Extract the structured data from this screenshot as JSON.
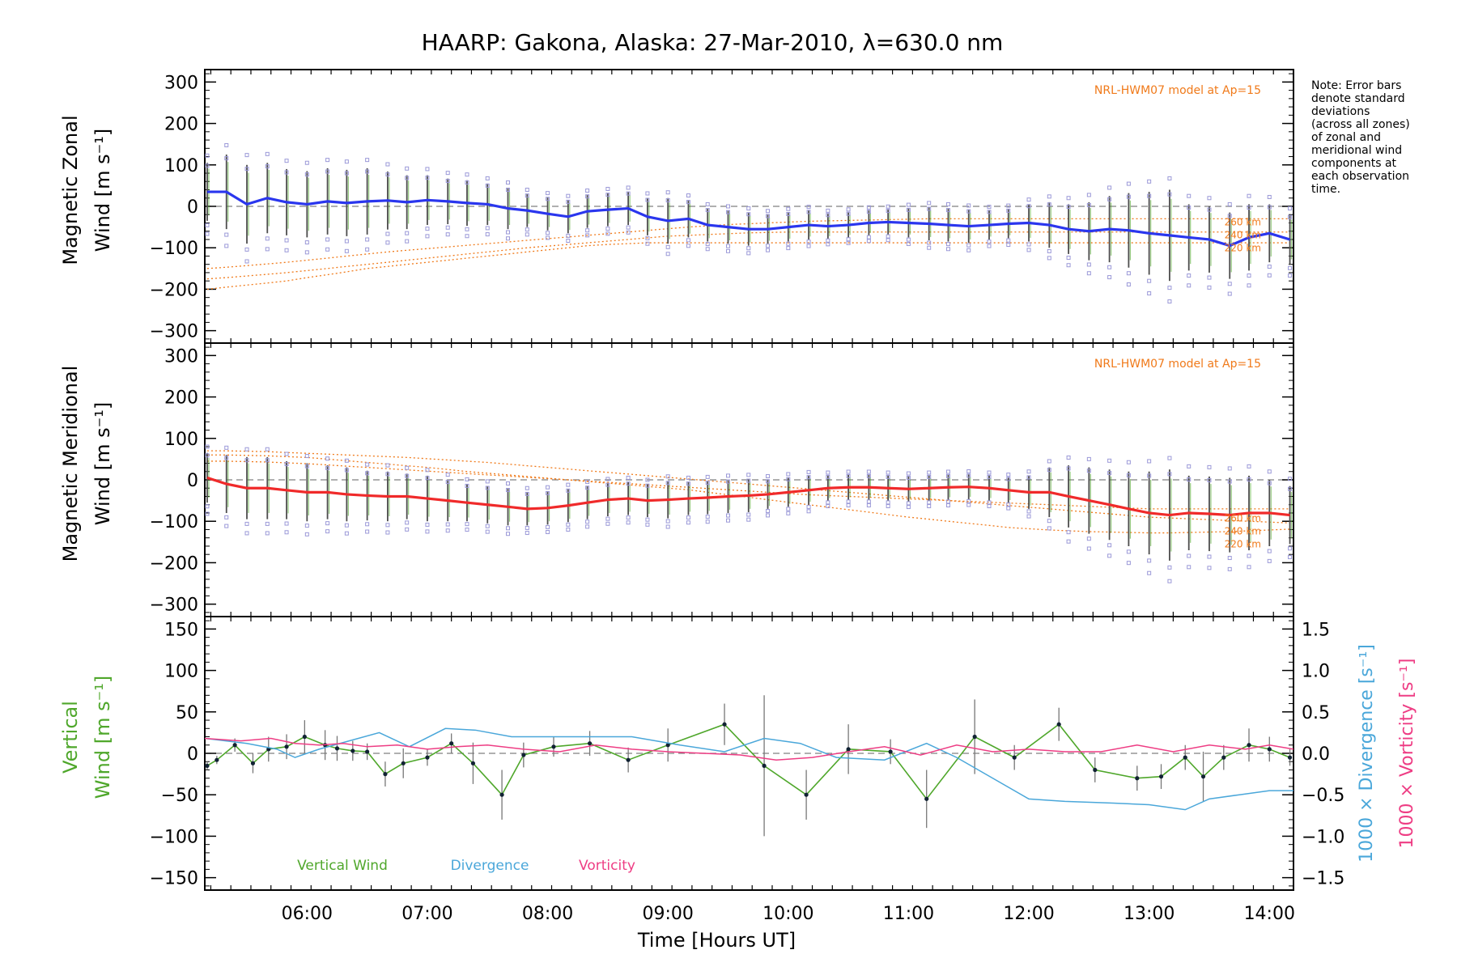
{
  "title": "HAARP: Gakona,  Alaska: 27-Mar-2010, λ=630.0 nm",
  "note_lines": [
    "Note: Error bars",
    "denote standard",
    "deviations",
    "(across all zones)",
    "of zonal and",
    "meridional wind",
    "components at",
    "each observation",
    "time."
  ],
  "colors": {
    "zonal": "#2a36ee",
    "meridional": "#f02a2a",
    "vertical": "#4fa72b",
    "divergence": "#4aa7da",
    "vorticity": "#ee3d84",
    "model": "#f07a1a",
    "error_bar": "#4d4d4d",
    "scatter": "#9b99d8",
    "zero_line": "#808080"
  },
  "chart_data": [
    {
      "id": "zonal",
      "type": "line",
      "ylabel_lines": [
        "Magnetic Zonal",
        "Wind [m s⁻¹]"
      ],
      "ylim": [
        -330,
        330
      ],
      "yticks": [
        -300,
        -200,
        -100,
        0,
        100,
        200,
        300
      ],
      "xlim": [
        5.15,
        14.2
      ],
      "model_label": "NRL-HWM07 model at Ap=15",
      "model_curve_labels": [
        "260 km",
        "240 km",
        "220 km"
      ],
      "x": [
        5.17,
        5.33,
        5.5,
        5.67,
        5.83,
        6.0,
        6.17,
        6.33,
        6.5,
        6.67,
        6.83,
        7.0,
        7.17,
        7.33,
        7.5,
        7.67,
        7.83,
        8.0,
        8.17,
        8.33,
        8.5,
        8.67,
        8.83,
        9.0,
        9.17,
        9.33,
        9.5,
        9.67,
        9.83,
        10.0,
        10.17,
        10.33,
        10.5,
        10.67,
        10.83,
        11.0,
        11.17,
        11.33,
        11.5,
        11.67,
        11.83,
        12.0,
        12.17,
        12.33,
        12.5,
        12.67,
        12.83,
        13.0,
        13.17,
        13.33,
        13.5,
        13.67,
        13.83,
        14.0,
        14.17
      ],
      "series": [
        {
          "values": [
            35,
            35,
            5,
            20,
            10,
            5,
            12,
            8,
            12,
            14,
            10,
            15,
            12,
            8,
            5,
            -5,
            -10,
            -18,
            -25,
            -12,
            -8,
            -5,
            -25,
            -35,
            -30,
            -45,
            -50,
            -55,
            -55,
            -50,
            -45,
            -48,
            -45,
            -40,
            -38,
            -40,
            -42,
            -45,
            -48,
            -45,
            -42,
            -40,
            -45,
            -55,
            -60,
            -55,
            -58,
            -65,
            -70,
            -75,
            -80,
            -95,
            -75,
            -65,
            -80
          ]
        },
        {
          "values": [
            -200,
            -195,
            -190,
            -185,
            -180,
            -172,
            -165,
            -158,
            -150,
            -145,
            -140,
            -135,
            -130,
            -125,
            -120,
            -115,
            -110,
            -105,
            -100,
            -95,
            -92,
            -90,
            -88,
            -88,
            -88,
            -88,
            -88,
            -88,
            -88,
            -88,
            -88,
            -88,
            -88,
            -88,
            -88,
            -88,
            -88,
            -88,
            -88,
            -88,
            -88,
            -88,
            -88,
            -88,
            -88,
            -88,
            -88,
            -88,
            -88,
            -88,
            -88,
            -88,
            -88,
            -88,
            -88
          ]
        },
        {
          "values": [
            -175,
            -172,
            -168,
            -164,
            -160,
            -155,
            -150,
            -145,
            -140,
            -135,
            -130,
            -125,
            -120,
            -115,
            -110,
            -105,
            -100,
            -96,
            -92,
            -88,
            -84,
            -80,
            -76,
            -72,
            -70,
            -68,
            -66,
            -64,
            -63,
            -62,
            -62,
            -62,
            -62,
            -62,
            -62,
            -62,
            -62,
            -62,
            -62,
            -62,
            -62,
            -62,
            -62,
            -62,
            -62,
            -62,
            -62,
            -62,
            -62,
            -62,
            -62,
            -62,
            -62,
            -62,
            -62
          ]
        },
        {
          "values": [
            -150,
            -147,
            -143,
            -139,
            -135,
            -130,
            -125,
            -120,
            -115,
            -110,
            -106,
            -102,
            -98,
            -94,
            -90,
            -86,
            -82,
            -78,
            -74,
            -70,
            -66,
            -62,
            -58,
            -54,
            -50,
            -47,
            -44,
            -42,
            -40,
            -38,
            -36,
            -35,
            -34,
            -33,
            -32,
            -31,
            -30,
            -30,
            -30,
            -30,
            -30,
            -30,
            -30,
            -30,
            -30,
            -30,
            -30,
            -30,
            -30,
            -30,
            -30,
            -30,
            -30,
            -30,
            -30
          ]
        }
      ],
      "obs_times": [
        5.17,
        5.33,
        5.5,
        5.67,
        5.83,
        6.0,
        6.17,
        6.33,
        6.5,
        6.67,
        6.83,
        7.0,
        7.17,
        7.33,
        7.5,
        7.67,
        7.83,
        8.0,
        8.17,
        8.33,
        8.5,
        8.67,
        8.83,
        9.0,
        9.17,
        9.33,
        9.5,
        9.67,
        9.83,
        10.0,
        10.17,
        10.33,
        10.5,
        10.67,
        10.83,
        11.0,
        11.17,
        11.33,
        11.5,
        11.67,
        11.83,
        12.0,
        12.17,
        12.33,
        12.5,
        12.67,
        12.83,
        13.0,
        13.17,
        13.33,
        13.5,
        13.67,
        13.83,
        14.0,
        14.17
      ],
      "obs_std": [
        70,
        90,
        95,
        85,
        80,
        80,
        80,
        80,
        80,
        70,
        65,
        60,
        55,
        55,
        50,
        50,
        40,
        40,
        40,
        40,
        40,
        40,
        45,
        55,
        45,
        40,
        40,
        40,
        35,
        35,
        35,
        30,
        30,
        30,
        30,
        35,
        40,
        40,
        40,
        35,
        35,
        45,
        55,
        60,
        70,
        80,
        90,
        100,
        110,
        80,
        80,
        80,
        80,
        70,
        60
      ]
    },
    {
      "id": "meridional",
      "type": "line",
      "ylabel_lines": [
        "Magnetic Meridional",
        "Wind [m s⁻¹]"
      ],
      "ylim": [
        -330,
        330
      ],
      "yticks": [
        -300,
        -200,
        -100,
        0,
        100,
        200,
        300
      ],
      "xlim": [
        5.15,
        14.2
      ],
      "model_label": "NRL-HWM07 model at Ap=15",
      "model_curve_labels": [
        "260 km",
        "240 km",
        "220 km"
      ],
      "x": [
        5.17,
        5.33,
        5.5,
        5.67,
        5.83,
        6.0,
        6.17,
        6.33,
        6.5,
        6.67,
        6.83,
        7.0,
        7.17,
        7.33,
        7.5,
        7.67,
        7.83,
        8.0,
        8.17,
        8.33,
        8.5,
        8.67,
        8.83,
        9.0,
        9.17,
        9.33,
        9.5,
        9.67,
        9.83,
        10.0,
        10.17,
        10.33,
        10.5,
        10.67,
        10.83,
        11.0,
        11.17,
        11.33,
        11.5,
        11.67,
        11.83,
        12.0,
        12.17,
        12.33,
        12.5,
        12.67,
        12.83,
        13.0,
        13.17,
        13.33,
        13.5,
        13.67,
        13.83,
        14.0,
        14.17
      ],
      "series": [
        {
          "values": [
            5,
            -10,
            -20,
            -20,
            -25,
            -30,
            -30,
            -35,
            -38,
            -40,
            -40,
            -45,
            -50,
            -55,
            -60,
            -65,
            -70,
            -68,
            -62,
            -55,
            -48,
            -45,
            -50,
            -48,
            -45,
            -43,
            -40,
            -38,
            -35,
            -30,
            -25,
            -20,
            -18,
            -18,
            -20,
            -22,
            -20,
            -18,
            -17,
            -20,
            -25,
            -30,
            -30,
            -40,
            -50,
            -60,
            -70,
            -80,
            -85,
            -80,
            -82,
            -85,
            -80,
            -80,
            -85
          ]
        },
        {
          "values": [
            60,
            60,
            59,
            58,
            56,
            54,
            50,
            46,
            42,
            38,
            34,
            30,
            25,
            20,
            16,
            12,
            8,
            4,
            0,
            -4,
            -8,
            -12,
            -16,
            -20,
            -24,
            -30,
            -36,
            -42,
            -48,
            -54,
            -60,
            -66,
            -72,
            -78,
            -84,
            -90,
            -95,
            -100,
            -105,
            -110,
            -115,
            -118,
            -121,
            -123,
            -125,
            -126,
            -127,
            -128,
            -128,
            -127,
            -126,
            -125,
            -123,
            -121,
            -119
          ]
        },
        {
          "values": [
            45,
            45,
            44,
            43,
            41,
            39,
            36,
            33,
            30,
            27,
            24,
            21,
            18,
            15,
            12,
            9,
            6,
            3,
            0,
            -3,
            -6,
            -9,
            -12,
            -15,
            -18,
            -21,
            -24,
            -27,
            -30,
            -33,
            -36,
            -38,
            -40,
            -42,
            -44,
            -46,
            -48,
            -50,
            -52,
            -54,
            -56,
            -58,
            -60,
            -62,
            -64,
            -66,
            -68,
            -70,
            -70,
            -70,
            -70,
            -70,
            -70,
            -70,
            -70
          ]
        },
        {
          "values": [
            70,
            70,
            69,
            68,
            66,
            64,
            62,
            60,
            58,
            56,
            54,
            51,
            48,
            45,
            42,
            38,
            34,
            30,
            26,
            22,
            18,
            14,
            10,
            6,
            2,
            -2,
            -6,
            -10,
            -14,
            -18,
            -22,
            -26,
            -30,
            -34,
            -38,
            -42,
            -46,
            -50,
            -54,
            -58,
            -62,
            -66,
            -70,
            -74,
            -78,
            -82,
            -86,
            -90,
            -92,
            -94,
            -96,
            -98,
            -100,
            -102,
            -104
          ]
        }
      ],
      "obs_times": [
        5.17,
        5.33,
        5.5,
        5.67,
        5.83,
        6.0,
        6.17,
        6.33,
        6.5,
        6.67,
        6.83,
        7.0,
        7.17,
        7.33,
        7.5,
        7.67,
        7.83,
        8.0,
        8.17,
        8.33,
        8.5,
        8.67,
        8.83,
        9.0,
        9.17,
        9.33,
        9.5,
        9.67,
        9.83,
        10.0,
        10.17,
        10.33,
        10.5,
        10.67,
        10.83,
        11.0,
        11.17,
        11.33,
        11.5,
        11.67,
        11.83,
        12.0,
        12.17,
        12.33,
        12.5,
        12.67,
        12.83,
        13.0,
        13.17,
        13.33,
        13.5,
        13.67,
        13.83,
        14.0,
        14.17
      ],
      "obs_std": [
        60,
        70,
        75,
        75,
        70,
        70,
        65,
        65,
        60,
        60,
        55,
        55,
        50,
        45,
        45,
        45,
        40,
        40,
        40,
        40,
        40,
        40,
        40,
        45,
        40,
        40,
        40,
        40,
        35,
        35,
        35,
        30,
        30,
        30,
        30,
        30,
        30,
        30,
        30,
        30,
        30,
        40,
        60,
        75,
        80,
        85,
        90,
        100,
        110,
        90,
        90,
        90,
        90,
        80,
        70
      ]
    },
    {
      "id": "vertical",
      "type": "line",
      "ylabel_lines": [
        "Vertical",
        "Wind [m s⁻¹]"
      ],
      "y2label": "1000 × Divergence [s⁻¹]",
      "y3label": "1000 × Vorticity [s⁻¹]",
      "ylim": [
        -165,
        165
      ],
      "yticks": [
        -150,
        -100,
        -50,
        0,
        50,
        100,
        150
      ],
      "y2lim": [
        -1.65,
        1.65
      ],
      "y2ticks": [
        -1.5,
        -1.0,
        -0.5,
        0.0,
        0.5,
        1.0,
        1.5
      ],
      "xlim": [
        5.15,
        14.2
      ],
      "xticks": [
        6,
        7,
        8,
        9,
        10,
        11,
        12,
        13,
        14
      ],
      "xticklabels": [
        "06:00",
        "07:00",
        "08:00",
        "09:00",
        "10:00",
        "11:00",
        "12:00",
        "13:00",
        "14:00"
      ],
      "xlabel": "Time [Hours UT]",
      "legend": [
        "Vertical Wind",
        "Divergence",
        "Vorticity"
      ],
      "series": [
        {
          "name": "Vertical Wind",
          "x": [
            5.17,
            5.25,
            5.4,
            5.55,
            5.68,
            5.83,
            5.98,
            6.15,
            6.25,
            6.38,
            6.5,
            6.65,
            6.8,
            7.0,
            7.2,
            7.38,
            7.62,
            7.8,
            8.05,
            8.35,
            8.67,
            9.0,
            9.47,
            9.8,
            10.15,
            10.5,
            10.85,
            11.15,
            11.55,
            11.88,
            12.25,
            12.55,
            12.9,
            13.1,
            13.3,
            13.45,
            13.62,
            13.83,
            14.0,
            14.17
          ],
          "values": [
            -15,
            -8,
            10,
            -12,
            5,
            8,
            20,
            10,
            6,
            3,
            2,
            -25,
            -12,
            -5,
            12,
            -12,
            -50,
            -2,
            8,
            12,
            -8,
            10,
            35,
            -15,
            -50,
            5,
            2,
            -55,
            20,
            -5,
            35,
            -20,
            -30,
            -28,
            -5,
            -28,
            -5,
            10,
            5,
            -5
          ],
          "err": [
            5,
            5,
            8,
            12,
            15,
            15,
            20,
            18,
            15,
            12,
            10,
            15,
            18,
            10,
            12,
            25,
            30,
            15,
            12,
            15,
            15,
            20,
            25,
            85,
            30,
            30,
            15,
            35,
            45,
            15,
            20,
            15,
            15,
            15,
            15,
            30,
            15,
            20,
            15,
            10
          ]
        },
        {
          "name": "Divergence",
          "x": [
            5.15,
            5.5,
            5.75,
            5.9,
            6.1,
            6.35,
            6.6,
            6.85,
            7.15,
            7.4,
            7.7,
            8.0,
            8.3,
            8.7,
            9.1,
            9.47,
            9.8,
            10.1,
            10.4,
            10.8,
            11.15,
            11.4,
            11.7,
            12.0,
            12.3,
            12.7,
            13.0,
            13.3,
            13.5,
            13.75,
            14.0,
            14.2
          ],
          "values": [
            0.18,
            0.12,
            0.05,
            -0.05,
            0.05,
            0.15,
            0.25,
            0.08,
            0.3,
            0.28,
            0.2,
            0.2,
            0.2,
            0.2,
            0.1,
            0.02,
            0.18,
            0.12,
            -0.05,
            -0.08,
            0.12,
            -0.05,
            -0.3,
            -0.55,
            -0.58,
            -0.6,
            -0.62,
            -0.68,
            -0.55,
            -0.5,
            -0.45,
            -0.45
          ]
        },
        {
          "name": "Vorticity",
          "x": [
            5.15,
            5.45,
            5.7,
            5.9,
            6.1,
            6.3,
            6.5,
            6.75,
            7.0,
            7.25,
            7.5,
            7.8,
            8.1,
            8.4,
            8.7,
            9.0,
            9.3,
            9.6,
            9.9,
            10.2,
            10.5,
            10.8,
            11.1,
            11.4,
            11.7,
            12.0,
            12.3,
            12.6,
            12.9,
            13.2,
            13.5,
            13.8,
            14.0,
            14.2
          ],
          "values": [
            0.18,
            0.15,
            0.18,
            0.12,
            0.1,
            0.12,
            0.08,
            0.1,
            0.05,
            0.08,
            0.1,
            0.05,
            0.02,
            0.1,
            0.05,
            0.02,
            0.0,
            -0.02,
            -0.08,
            -0.05,
            0.02,
            0.08,
            -0.02,
            0.1,
            0.02,
            0.05,
            0.02,
            0.02,
            0.1,
            0.02,
            0.1,
            0.05,
            0.1,
            0.05
          ]
        }
      ]
    }
  ]
}
